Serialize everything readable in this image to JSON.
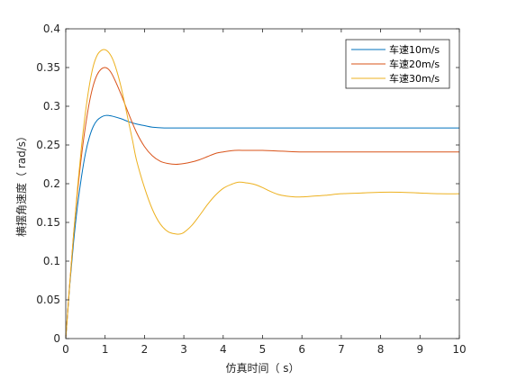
{
  "chart_data": {
    "type": "line",
    "title": "",
    "xlabel": "仿真时间（ s）",
    "ylabel": "横摆角速度（ rad/s）",
    "xlim": [
      0,
      10
    ],
    "ylim": [
      0,
      0.4
    ],
    "xticks": [
      0,
      1,
      2,
      3,
      4,
      5,
      6,
      7,
      8,
      9,
      10
    ],
    "yticks": [
      0,
      0.05,
      0.1,
      0.15,
      0.2,
      0.25,
      0.3,
      0.35,
      0.4
    ],
    "xtick_labels": [
      "0",
      "1",
      "2",
      "3",
      "4",
      "5",
      "6",
      "7",
      "8",
      "9",
      "10"
    ],
    "ytick_labels": [
      "0",
      "0.05",
      "0.1",
      "0.15",
      "0.2",
      "0.25",
      "0.3",
      "0.35",
      "0.4"
    ],
    "grid": false,
    "legend_position": "top-right",
    "series": [
      {
        "name": "车速10m/s",
        "color": "#0072BD",
        "x": [
          0,
          0.1,
          0.2,
          0.3,
          0.4,
          0.5,
          0.6,
          0.7,
          0.8,
          0.9,
          1.0,
          1.1,
          1.2,
          1.4,
          1.6,
          1.8,
          2.0,
          2.2,
          2.5,
          3.0,
          4.0,
          5.0,
          6.0,
          7.0,
          8.0,
          9.0,
          10.0
        ],
        "y": [
          0,
          0.068,
          0.125,
          0.172,
          0.209,
          0.239,
          0.26,
          0.274,
          0.282,
          0.286,
          0.288,
          0.288,
          0.287,
          0.284,
          0.28,
          0.277,
          0.275,
          0.273,
          0.272,
          0.272,
          0.272,
          0.272,
          0.272,
          0.272,
          0.272,
          0.272,
          0.272
        ]
      },
      {
        "name": "车速20m/s",
        "color": "#D95319",
        "x": [
          0,
          0.1,
          0.2,
          0.3,
          0.4,
          0.5,
          0.6,
          0.7,
          0.8,
          0.9,
          1.0,
          1.1,
          1.2,
          1.4,
          1.6,
          1.8,
          2.0,
          2.2,
          2.4,
          2.6,
          2.8,
          3.0,
          3.2,
          3.4,
          3.6,
          3.8,
          4.0,
          4.3,
          4.6,
          5.0,
          5.5,
          6.0,
          6.5,
          7.0,
          8.0,
          9.0,
          10.0
        ],
        "y": [
          0,
          0.07,
          0.135,
          0.19,
          0.236,
          0.274,
          0.305,
          0.327,
          0.341,
          0.348,
          0.35,
          0.347,
          0.339,
          0.316,
          0.29,
          0.266,
          0.248,
          0.236,
          0.229,
          0.226,
          0.225,
          0.226,
          0.228,
          0.231,
          0.235,
          0.239,
          0.241,
          0.243,
          0.243,
          0.243,
          0.242,
          0.241,
          0.241,
          0.241,
          0.241,
          0.241,
          0.241
        ]
      },
      {
        "name": "车速30m/s",
        "color": "#EDB120",
        "x": [
          0,
          0.1,
          0.2,
          0.3,
          0.4,
          0.5,
          0.6,
          0.7,
          0.8,
          0.9,
          1.0,
          1.1,
          1.2,
          1.3,
          1.4,
          1.5,
          1.6,
          1.7,
          1.8,
          2.0,
          2.2,
          2.4,
          2.6,
          2.8,
          2.9,
          3.0,
          3.2,
          3.4,
          3.6,
          3.8,
          4.0,
          4.2,
          4.4,
          4.6,
          4.8,
          5.0,
          5.2,
          5.4,
          5.6,
          5.8,
          6.0,
          6.3,
          6.6,
          7.0,
          7.5,
          8.0,
          8.5,
          9.0,
          9.5,
          10.0
        ],
        "y": [
          0,
          0.07,
          0.135,
          0.195,
          0.248,
          0.292,
          0.327,
          0.352,
          0.366,
          0.372,
          0.373,
          0.369,
          0.36,
          0.345,
          0.326,
          0.303,
          0.279,
          0.255,
          0.23,
          0.195,
          0.167,
          0.148,
          0.138,
          0.135,
          0.135,
          0.137,
          0.146,
          0.159,
          0.173,
          0.185,
          0.194,
          0.199,
          0.202,
          0.201,
          0.199,
          0.195,
          0.19,
          0.186,
          0.184,
          0.183,
          0.183,
          0.184,
          0.185,
          0.187,
          0.188,
          0.189,
          0.189,
          0.188,
          0.187,
          0.187
        ]
      }
    ]
  }
}
